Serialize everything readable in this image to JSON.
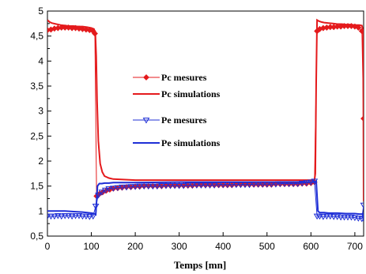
{
  "chart_data": {
    "type": "line",
    "xlabel": "Temps [mn]",
    "ylabel": "",
    "xlim": [
      0,
      720
    ],
    "ylim": [
      0.5,
      5
    ],
    "xticks": [
      0,
      100,
      200,
      300,
      400,
      500,
      600,
      700
    ],
    "yticks": [
      0.5,
      1,
      1.5,
      2,
      2.5,
      3,
      3.5,
      4,
      4.5,
      5
    ],
    "ytick_labels": [
      "0,5",
      "1",
      "1,5",
      "2",
      "2,5",
      "3",
      "3,5",
      "4",
      "4,5",
      "5"
    ],
    "grid": false,
    "legend_position": "center-left",
    "colors": {
      "pc": "#e41a1c",
      "pe": "#1f2fd6"
    },
    "series": [
      {
        "name": "Pc mesures",
        "style": "diamond-markers",
        "color": "#e41a1c",
        "x": [
          0,
          8,
          16,
          24,
          32,
          40,
          48,
          56,
          64,
          72,
          80,
          88,
          96,
          104,
          108,
          112,
          118,
          126,
          134,
          142,
          150,
          160,
          170,
          180,
          190,
          200,
          210,
          220,
          230,
          240,
          250,
          260,
          270,
          280,
          290,
          300,
          310,
          320,
          330,
          340,
          350,
          360,
          370,
          380,
          390,
          400,
          410,
          420,
          430,
          440,
          450,
          460,
          470,
          480,
          490,
          500,
          510,
          520,
          530,
          540,
          550,
          560,
          570,
          580,
          590,
          600,
          608,
          614,
          620,
          628,
          636,
          644,
          652,
          660,
          668,
          676,
          684,
          692,
          700,
          708,
          716,
          720
        ],
        "y": [
          4.62,
          4.63,
          4.65,
          4.66,
          4.67,
          4.67,
          4.67,
          4.66,
          4.66,
          4.65,
          4.64,
          4.63,
          4.62,
          4.6,
          4.55,
          1.3,
          1.34,
          1.38,
          1.41,
          1.43,
          1.45,
          1.46,
          1.47,
          1.48,
          1.48,
          1.49,
          1.49,
          1.5,
          1.5,
          1.5,
          1.5,
          1.5,
          1.51,
          1.51,
          1.51,
          1.51,
          1.51,
          1.51,
          1.51,
          1.52,
          1.52,
          1.52,
          1.52,
          1.52,
          1.52,
          1.52,
          1.52,
          1.52,
          1.53,
          1.53,
          1.53,
          1.53,
          1.53,
          1.53,
          1.53,
          1.53,
          1.53,
          1.54,
          1.54,
          1.54,
          1.54,
          1.54,
          1.54,
          1.55,
          1.55,
          1.56,
          1.58,
          4.6,
          4.64,
          4.66,
          4.67,
          4.68,
          4.68,
          4.69,
          4.69,
          4.7,
          4.7,
          4.7,
          4.69,
          4.67,
          4.6,
          2.85
        ]
      },
      {
        "name": "Pc simulations",
        "style": "line",
        "color": "#e41a1c",
        "x": [
          0,
          5,
          10,
          20,
          30,
          40,
          50,
          60,
          70,
          80,
          90,
          100,
          106,
          109,
          111,
          113,
          116,
          120,
          125,
          130,
          140,
          150,
          200,
          300,
          400,
          500,
          600,
          608,
          610,
          612,
          614,
          618,
          624,
          630,
          640,
          650,
          660,
          670,
          680,
          690,
          700,
          710,
          716,
          719,
          720
        ],
        "y": [
          4.82,
          4.78,
          4.76,
          4.74,
          4.72,
          4.71,
          4.7,
          4.7,
          4.69,
          4.69,
          4.68,
          4.66,
          4.64,
          4.55,
          4.1,
          3.2,
          2.4,
          1.95,
          1.78,
          1.7,
          1.66,
          1.64,
          1.62,
          1.62,
          1.62,
          1.62,
          1.62,
          1.62,
          1.75,
          3.6,
          4.82,
          4.8,
          4.78,
          4.77,
          4.76,
          4.75,
          4.74,
          4.74,
          4.73,
          4.73,
          4.72,
          4.72,
          4.71,
          4.6,
          1.2
        ]
      },
      {
        "name": "Pe mesures",
        "style": "triangle-markers",
        "color": "#1f2fd6",
        "x": [
          0,
          8,
          16,
          24,
          32,
          40,
          48,
          56,
          64,
          72,
          80,
          88,
          96,
          104,
          110,
          116,
          124,
          132,
          140,
          150,
          160,
          170,
          180,
          190,
          200,
          210,
          220,
          230,
          240,
          250,
          260,
          270,
          280,
          290,
          300,
          310,
          320,
          330,
          340,
          350,
          360,
          370,
          380,
          390,
          400,
          410,
          420,
          430,
          440,
          450,
          460,
          470,
          480,
          490,
          500,
          510,
          520,
          530,
          540,
          550,
          560,
          570,
          580,
          590,
          600,
          608,
          614,
          620,
          628,
          636,
          644,
          652,
          660,
          668,
          676,
          684,
          692,
          700,
          708,
          716,
          720
        ],
        "y": [
          0.9,
          0.9,
          0.9,
          0.91,
          0.9,
          0.91,
          0.91,
          0.9,
          0.91,
          0.91,
          0.9,
          0.9,
          0.89,
          0.9,
          1.1,
          1.32,
          1.38,
          1.42,
          1.45,
          1.46,
          1.47,
          1.48,
          1.48,
          1.49,
          1.49,
          1.5,
          1.5,
          1.5,
          1.5,
          1.5,
          1.51,
          1.51,
          1.51,
          1.51,
          1.51,
          1.51,
          1.52,
          1.52,
          1.52,
          1.52,
          1.52,
          1.52,
          1.52,
          1.53,
          1.53,
          1.53,
          1.53,
          1.53,
          1.53,
          1.53,
          1.53,
          1.54,
          1.54,
          1.54,
          1.54,
          1.54,
          1.54,
          1.55,
          1.55,
          1.55,
          1.55,
          1.55,
          1.56,
          1.57,
          1.58,
          1.6,
          0.9,
          0.9,
          0.89,
          0.9,
          0.9,
          0.89,
          0.89,
          0.88,
          0.88,
          0.88,
          0.88,
          0.87,
          0.86,
          0.85,
          1.12
        ]
      },
      {
        "name": "Pe simulations",
        "style": "line",
        "color": "#1f2fd6",
        "x": [
          0,
          10,
          20,
          40,
          60,
          80,
          100,
          106,
          110,
          112,
          114,
          118,
          124,
          130,
          140,
          150,
          200,
          300,
          400,
          500,
          600,
          608,
          612,
          614,
          616,
          620,
          630,
          640,
          660,
          680,
          700,
          710,
          716,
          718,
          720
        ],
        "y": [
          1.0,
          1.0,
          1.0,
          1.0,
          0.99,
          0.98,
          0.96,
          0.95,
          0.93,
          1.2,
          1.5,
          1.55,
          1.55,
          1.56,
          1.56,
          1.57,
          1.57,
          1.58,
          1.58,
          1.58,
          1.58,
          1.59,
          1.6,
          1.3,
          1.0,
          0.97,
          0.97,
          0.96,
          0.96,
          0.95,
          0.95,
          0.94,
          0.94,
          0.95,
          0.8
        ]
      }
    ]
  }
}
